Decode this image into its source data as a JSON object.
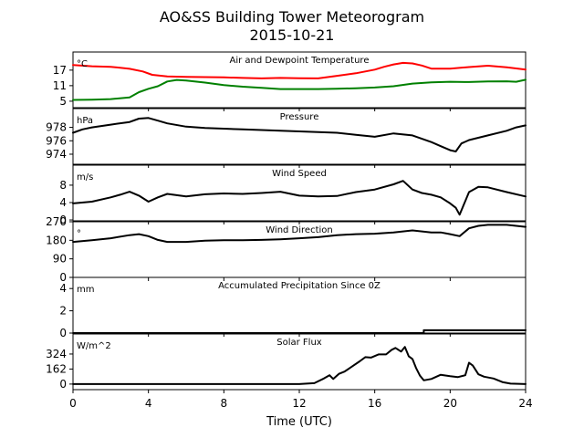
{
  "figure": {
    "title_line1": "AO&SS Building Tower Meteorogram",
    "title_line2": "2015-10-21",
    "xlabel": "Time (UTC)"
  },
  "chart_data": {
    "type": "line",
    "x_axis": {
      "label": "Time (UTC)",
      "xlim": [
        0,
        24
      ],
      "ticks": [
        0,
        4,
        8,
        12,
        16,
        20,
        24
      ]
    },
    "panels": [
      {
        "key": "temp",
        "title": "Air and Dewpoint Temperature",
        "unit": "°C",
        "ylim": [
          2.5,
          24
        ],
        "yticks": [
          5,
          11,
          17
        ],
        "series": [
          {
            "color": "#ff0000",
            "x": [
              0,
              1,
              2,
              3,
              3.7,
              4.2,
              5,
              6,
              7,
              8,
              9,
              10,
              11,
              12,
              13,
              14,
              15,
              16,
              16.5,
              17,
              17.5,
              18,
              18.5,
              19,
              20,
              21,
              22,
              23,
              24
            ],
            "y": [
              19,
              18.5,
              18.3,
              17.5,
              16.5,
              15.2,
              14.6,
              14.4,
              14.3,
              14.2,
              14.0,
              13.8,
              14.0,
              13.9,
              13.8,
              14.8,
              15.8,
              17.2,
              18.3,
              19.2,
              19.8,
              19.6,
              18.8,
              17.6,
              17.6,
              18.2,
              18.7,
              18.1,
              17.2
            ]
          },
          {
            "color": "#008000",
            "x": [
              0,
              1,
              2,
              3,
              3.5,
              4,
              4.5,
              5,
              5.5,
              6,
              7,
              8,
              9,
              10,
              11,
              12,
              13,
              14,
              15,
              16,
              17,
              18,
              19,
              20,
              21,
              22,
              23,
              23.5,
              24
            ],
            "y": [
              5.5,
              5.6,
              5.8,
              6.5,
              8.5,
              9.8,
              10.8,
              12.6,
              13.2,
              13.0,
              12.2,
              11.2,
              10.6,
              10.2,
              9.7,
              9.7,
              9.7,
              9.8,
              10.0,
              10.3,
              10.8,
              11.8,
              12.3,
              12.5,
              12.4,
              12.6,
              12.7,
              12.5,
              13.3
            ]
          }
        ]
      },
      {
        "key": "pressure",
        "title": "Pressure",
        "unit": "hPa",
        "ylim": [
          972.5,
          980.8
        ],
        "yticks": [
          974,
          976,
          978
        ],
        "series": [
          {
            "color": "#000000",
            "x": [
              0,
              0.5,
              1,
              2,
              3,
              3.5,
              4,
              4.5,
              5,
              6,
              7,
              8,
              9,
              10,
              11,
              12,
              13,
              14,
              15,
              16,
              17,
              18,
              19,
              19.5,
              20,
              20.3,
              20.6,
              21,
              22,
              23,
              23.5,
              24
            ],
            "y": [
              977.2,
              977.7,
              978.0,
              978.4,
              978.8,
              979.3,
              979.4,
              979.0,
              978.6,
              978.1,
              977.9,
              977.8,
              977.7,
              977.6,
              977.5,
              977.4,
              977.3,
              977.2,
              976.9,
              976.6,
              977.1,
              976.8,
              975.8,
              975.2,
              974.6,
              974.4,
              975.6,
              976.1,
              976.8,
              977.5,
              978.0,
              978.3
            ]
          }
        ]
      },
      {
        "key": "wind_speed",
        "title": "Wind Speed",
        "unit": "m/s",
        "ylim": [
          -0.2,
          12.6
        ],
        "yticks": [
          0,
          4,
          8
        ],
        "series": [
          {
            "color": "#000000",
            "x": [
              0,
              1,
              2,
              2.5,
              3,
              3.5,
              4,
              4.5,
              5,
              6,
              7,
              8,
              9,
              10,
              11,
              12,
              13,
              14,
              15,
              16,
              17,
              17.5,
              18,
              18.5,
              19,
              19.5,
              20,
              20.3,
              20.5,
              21,
              21.5,
              22,
              23,
              24
            ],
            "y": [
              3.8,
              4.2,
              5.2,
              5.8,
              6.5,
              5.6,
              4.2,
              5.2,
              6.0,
              5.4,
              5.9,
              6.1,
              6.0,
              6.2,
              6.5,
              5.6,
              5.4,
              5.5,
              6.4,
              7.0,
              8.2,
              9.0,
              7.0,
              6.2,
              5.8,
              5.2,
              3.8,
              2.8,
              1.2,
              6.4,
              7.6,
              7.5,
              6.4,
              5.4
            ]
          }
        ]
      },
      {
        "key": "wind_dir",
        "title": "Wind Direction",
        "unit": "°",
        "ylim": [
          0,
          270
        ],
        "yticks": [
          0,
          90,
          180,
          270
        ],
        "series": [
          {
            "color": "#000000",
            "x": [
              0,
              1,
              2,
              3,
              3.5,
              4,
              4.5,
              5,
              6,
              7,
              8,
              9,
              10,
              11,
              12,
              13,
              14,
              15,
              16,
              17,
              18,
              19,
              19.5,
              20,
              20.5,
              21,
              21.5,
              22,
              23,
              24
            ],
            "y": [
              172,
              180,
              190,
              205,
              210,
              200,
              182,
              172,
              172,
              178,
              180,
              180,
              182,
              185,
              190,
              195,
              205,
              210,
              212,
              218,
              228,
              218,
              218,
              210,
              200,
              238,
              250,
              255,
              255,
              245
            ]
          }
        ]
      },
      {
        "key": "precip",
        "title": "Accumulated Precipitation Since 0Z",
        "unit": "mm",
        "ylim": [
          0,
          5
        ],
        "yticks": [
          0,
          2,
          4
        ],
        "series": [
          {
            "color": "#000000",
            "x": [
              0,
              18.6,
              18.6,
              24
            ],
            "y": [
              0,
              0,
              0.25,
              0.25
            ]
          }
        ]
      },
      {
        "key": "solar",
        "title": "Solar Flux",
        "unit": "W/m^2",
        "ylim": [
          -60,
          540
        ],
        "yticks": [
          0,
          162,
          324
        ],
        "series": [
          {
            "color": "#000000",
            "x": [
              0,
              12,
              12.8,
              13.3,
              13.6,
              13.8,
              14.1,
              14.4,
              14.8,
              15.2,
              15.5,
              15.8,
              16.2,
              16.6,
              16.9,
              17.1,
              17.4,
              17.6,
              17.8,
              18.0,
              18.2,
              18.4,
              18.6,
              19.0,
              19.5,
              20.0,
              20.4,
              20.8,
              21.0,
              21.2,
              21.5,
              21.8,
              22.3,
              22.8,
              23.2,
              24
            ],
            "y": [
              0,
              0,
              10,
              60,
              95,
              55,
              110,
              135,
              190,
              245,
              290,
              285,
              320,
              320,
              370,
              390,
              350,
              400,
              300,
              270,
              170,
              90,
              40,
              55,
              100,
              85,
              75,
              95,
              230,
              200,
              105,
              80,
              60,
              20,
              5,
              0
            ]
          }
        ]
      }
    ]
  }
}
